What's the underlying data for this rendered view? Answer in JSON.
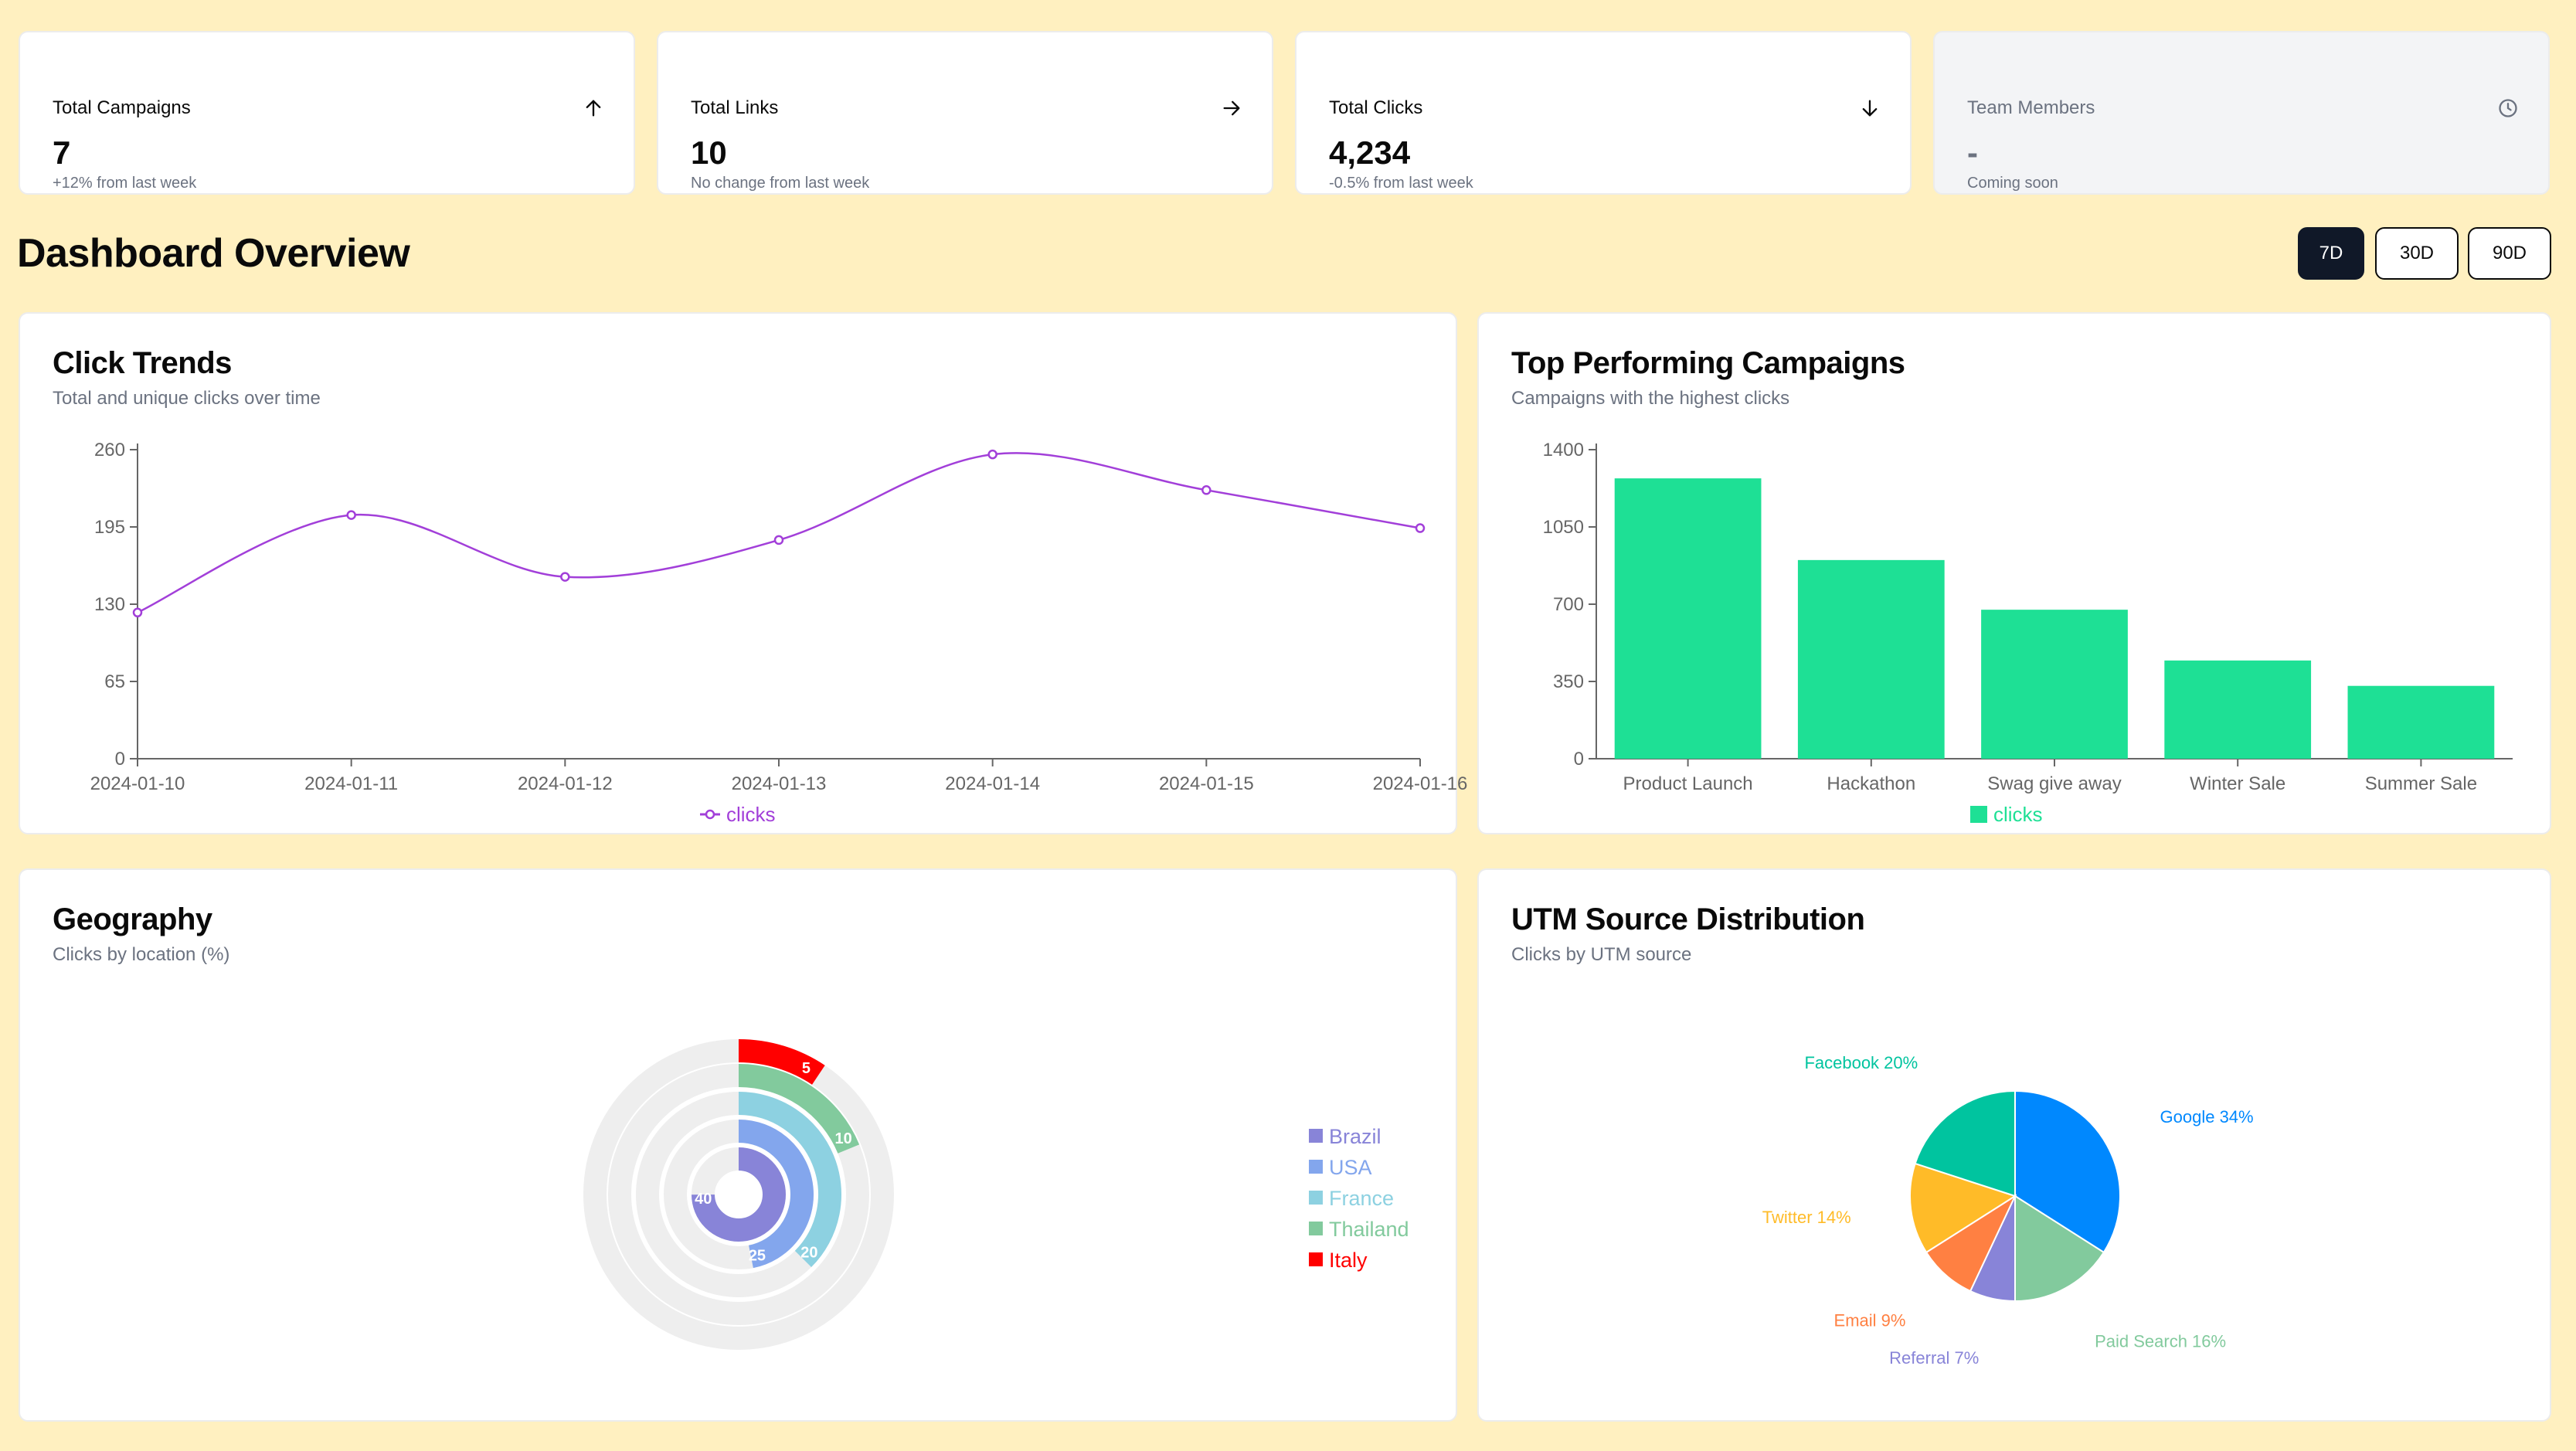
{
  "stats": [
    {
      "title": "Total Campaigns",
      "value": "7",
      "sub": "+12% from last week",
      "icon": "arrow-up-icon"
    },
    {
      "title": "Total Links",
      "value": "10",
      "sub": "No change from last week",
      "icon": "arrow-right-icon"
    },
    {
      "title": "Total Clicks",
      "value": "4,234",
      "sub": "-0.5% from last week",
      "icon": "arrow-down-icon"
    },
    {
      "title": "Team Members",
      "value": "-",
      "sub": "Coming soon",
      "icon": "clock-icon"
    }
  ],
  "dashboard": {
    "title": "Dashboard Overview",
    "ranges": [
      {
        "label": "7D",
        "active": true
      },
      {
        "label": "30D",
        "active": false
      },
      {
        "label": "90D",
        "active": false
      }
    ]
  },
  "panels": {
    "click_trends": {
      "title": "Click Trends",
      "subtitle": "Total and unique clicks over time"
    },
    "top_campaigns": {
      "title": "Top Performing Campaigns",
      "subtitle": "Campaigns with the highest clicks"
    },
    "geography": {
      "title": "Geography",
      "subtitle": "Clicks by location (%)"
    },
    "utm": {
      "title": "UTM Source Distribution",
      "subtitle": "Clicks by UTM source"
    }
  },
  "colors": {
    "line": "#a23fd9",
    "bar": "#1ee095",
    "accent_dark": "#101828"
  },
  "chart_data": [
    {
      "id": "click_trends",
      "type": "line",
      "title": "Click Trends",
      "x": [
        "2024-01-10",
        "2024-01-11",
        "2024-01-12",
        "2024-01-13",
        "2024-01-14",
        "2024-01-15",
        "2024-01-16"
      ],
      "series": [
        {
          "name": "clicks",
          "values": [
            123,
            205,
            153,
            184,
            256,
            226,
            194
          ],
          "color": "#a23fd9"
        }
      ],
      "yticks": [
        0,
        65,
        130,
        195,
        260
      ],
      "ylim": [
        0,
        260
      ],
      "legend": "bottom"
    },
    {
      "id": "top_campaigns",
      "type": "bar",
      "title": "Top Performing Campaigns",
      "categories": [
        "Product Launch",
        "Hackathon",
        "Swag give away",
        "Winter Sale",
        "Summer Sale"
      ],
      "series": [
        {
          "name": "clicks",
          "values": [
            1270,
            900,
            675,
            445,
            330
          ],
          "color": "#1ee095"
        }
      ],
      "yticks": [
        0,
        350,
        700,
        1050,
        1400
      ],
      "ylim": [
        0,
        1400
      ],
      "legend": "bottom"
    },
    {
      "id": "geography",
      "type": "radial-bar",
      "title": "Geography",
      "categories": [
        "Brazil",
        "USA",
        "France",
        "Thailand",
        "Italy"
      ],
      "values": [
        40,
        25,
        20,
        10,
        5
      ],
      "colors": [
        "#8884d8",
        "#83a6ed",
        "#8dd1e1",
        "#82ca9d",
        "#ff0000"
      ],
      "legend": "right"
    },
    {
      "id": "utm",
      "type": "pie",
      "title": "UTM Source Distribution",
      "slices": [
        {
          "label": "Google",
          "value": 34,
          "color": "#0088fe"
        },
        {
          "label": "Paid Search",
          "value": 16,
          "color": "#82ca9d"
        },
        {
          "label": "Referral",
          "value": 7,
          "color": "#8884d8"
        },
        {
          "label": "Email",
          "value": 9,
          "color": "#ff8042"
        },
        {
          "label": "Twitter",
          "value": 14,
          "color": "#ffbb28"
        },
        {
          "label": "Facebook",
          "value": 20,
          "color": "#00c49f"
        }
      ]
    }
  ]
}
